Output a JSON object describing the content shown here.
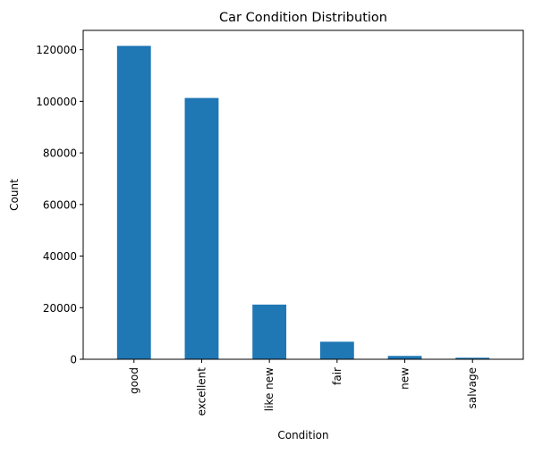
{
  "chart_data": {
    "type": "bar",
    "title": "Car Condition Distribution",
    "xlabel": "Condition",
    "ylabel": "Count",
    "categories": [
      "good",
      "excellent",
      "like new",
      "fair",
      "new",
      "salvage"
    ],
    "values": [
      121500,
      101300,
      21200,
      6800,
      1300,
      600
    ],
    "ylim": [
      0,
      127500
    ],
    "yticks": [
      0,
      20000,
      40000,
      60000,
      80000,
      100000,
      120000
    ],
    "grid": false,
    "legend": "none",
    "bar_color": "#1f77b4"
  }
}
